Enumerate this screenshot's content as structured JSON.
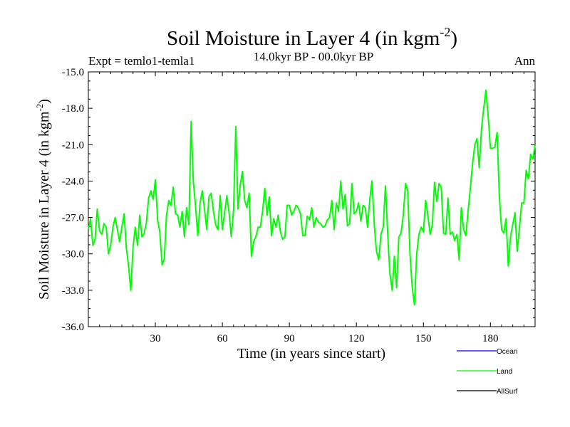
{
  "title": "Soil Moisture in Layer 4 (in kgm",
  "title_sup": "-2",
  "title_close": ")",
  "expt_label": "Expt = temlo1-temla1",
  "period_label": "14.0kyr BP - 00.0kyr BP",
  "season_label": "Ann",
  "chart_data": {
    "type": "line",
    "title": "Soil Moisture in Layer 4 (in kgm-2)",
    "xlabel": "Time (in years since start)",
    "ylabel": "Soil Moisture in Layer 4 (in kgm-2)",
    "xlim": [
      0,
      200
    ],
    "ylim": [
      -36,
      -15
    ],
    "x_ticks": [
      30,
      60,
      90,
      120,
      150,
      180
    ],
    "y_ticks": [
      -15,
      -18,
      -21,
      -24,
      -27,
      -30,
      -33,
      -36
    ],
    "x_tick_labels": [
      "30",
      "60",
      "90",
      "120",
      "150",
      "180"
    ],
    "y_tick_labels": [
      "-15.0",
      "-18.0",
      "-21.0",
      "-24.0",
      "-27.0",
      "-30.0",
      "-33.0",
      "-36.0"
    ],
    "legend_position": "bottom-right",
    "series": [
      {
        "name": "Ocean",
        "color": "#0000ff",
        "values": []
      },
      {
        "name": "Land",
        "color": "#00ff00",
        "values": [
          -28.0,
          -27.1,
          -29.3,
          -28.8,
          -26.3,
          -28.1,
          -28.4,
          -27.5,
          -27.8,
          -30.0,
          -29.3,
          -27.8,
          -27.0,
          -28.0,
          -29.0,
          -27.8,
          -26.7,
          -29.5,
          -31.0,
          -33.0,
          -29.5,
          -27.8,
          -29.3,
          -26.8,
          -28.6,
          -28.3,
          -27.4,
          -25.4,
          -24.8,
          -25.5,
          -23.9,
          -27.2,
          -28.2,
          -30.9,
          -30.4,
          -26.8,
          -25.6,
          -26.0,
          -24.5,
          -26.7,
          -26.8,
          -27.8,
          -26.5,
          -28.6,
          -26.2,
          -27.6,
          -19.1,
          -24.0,
          -26.1,
          -28.5,
          -25.8,
          -24.8,
          -26.3,
          -28.0,
          -25.3,
          -25.0,
          -26.5,
          -27.6,
          -28.0,
          -25.2,
          -28.0,
          -26.6,
          -25.2,
          -26.6,
          -28.6,
          -26.4,
          -19.5,
          -26.3,
          -24.3,
          -23.2,
          -25.6,
          -26.2,
          -25.0,
          -30.2,
          -29.0,
          -28.6,
          -27.8,
          -27.8,
          -26.5,
          -24.6,
          -26.8,
          -25.3,
          -28.5,
          -27.1,
          -27.8,
          -26.8,
          -28.2,
          -28.8,
          -28.6,
          -26.0,
          -26.0,
          -26.8,
          -26.5,
          -26.0,
          -26.2,
          -26.7,
          -28.5,
          -28.5,
          -26.9,
          -27.2,
          -26.2,
          -27.8,
          -27.0,
          -27.4,
          -27.5,
          -27.8,
          -27.7,
          -27.2,
          -27.0,
          -25.6,
          -28.0,
          -25.8,
          -26.5,
          -24.0,
          -26.3,
          -25.1,
          -27.7,
          -27.5,
          -24.2,
          -26.7,
          -26.5,
          -25.8,
          -27.3,
          -26.0,
          -26.2,
          -27.8,
          -25.5,
          -24.0,
          -27.6,
          -29.8,
          -30.5,
          -28.4,
          -27.8,
          -24.4,
          -28.3,
          -31.6,
          -33.0,
          -30.2,
          -32.8,
          -28.6,
          -28.3,
          -26.8,
          -24.2,
          -24.8,
          -30.0,
          -32.8,
          -34.2,
          -30.0,
          -28.4,
          -27.8,
          -28.2,
          -25.6,
          -26.8,
          -28.4,
          -27.6,
          -24.1,
          -25.7,
          -24.2,
          -24.5,
          -28.3,
          -28.4,
          -25.4,
          -28.4,
          -28.2,
          -28.9,
          -28.4,
          -30.5,
          -26.2,
          -28.0,
          -28.5,
          -26.5,
          -24.6,
          -22.6,
          -21.0,
          -20.5,
          -22.9,
          -19.7,
          -18.0,
          -16.5,
          -18.7,
          -21.3,
          -21.3,
          -21.2,
          -20.0,
          -25.2,
          -28.0,
          -28.3,
          -27.1,
          -31.0,
          -28.6,
          -27.6,
          -26.6,
          -29.8,
          -27.8,
          -25.8,
          -25.8,
          -23.1,
          -23.8,
          -21.8,
          -22.2,
          -21.0
        ]
      },
      {
        "name": "AllSurf",
        "color": "#000000",
        "values": []
      }
    ]
  }
}
